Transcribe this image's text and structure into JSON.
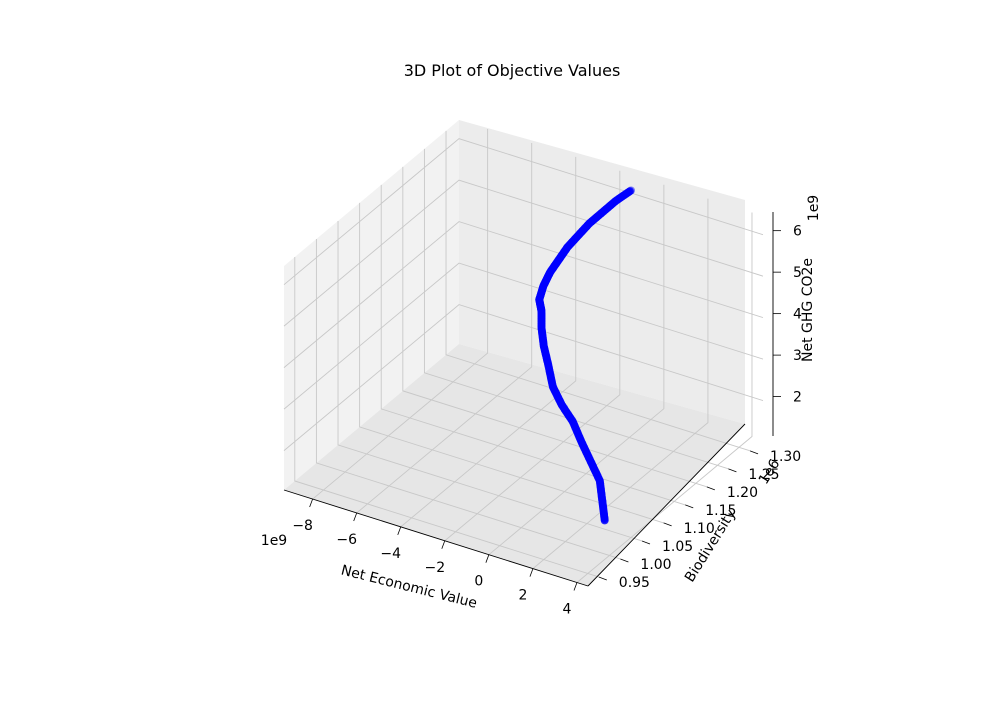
{
  "chart_data": {
    "type": "scatter",
    "title": "3D Plot of Objective Values",
    "xlabel": "Net Economic Value",
    "ylabel": "Biodiversity",
    "zlabel": "Net GHG CO2e",
    "x_offset_text": "1e9",
    "y_offset_text": "1e6",
    "z_offset_text": "1e9",
    "x_ticks": [
      "−8",
      "−6",
      "−4",
      "−2",
      "0",
      "2",
      "4"
    ],
    "y_ticks": [
      "0.95",
      "1.00",
      "1.05",
      "1.10",
      "1.15",
      "1.20",
      "1.25",
      "1.30"
    ],
    "z_ticks": [
      "2",
      "3",
      "4",
      "5",
      "6"
    ],
    "marker_color": "#0000ff",
    "grid": true,
    "series": [
      {
        "x": [
          3.2,
          2.5,
          1.8,
          1.0,
          0.2,
          -0.6,
          -1.3,
          -1.9,
          -2.5,
          -2.9,
          -3.2,
          -3.4,
          -3.5,
          -3.5,
          -3.4,
          -3.2,
          -3.0,
          -2.7,
          -2.4,
          -2.0,
          -1.6,
          -1.1
        ],
        "y": [
          1.03,
          1.06,
          1.09,
          1.11,
          1.13,
          1.15,
          1.16,
          1.17,
          1.19,
          1.2,
          1.21,
          1.22,
          1.22,
          1.23,
          1.24,
          1.25,
          1.26,
          1.27,
          1.28,
          1.29,
          1.3,
          1.31
        ],
        "z": [
          1.5,
          1.6,
          1.7,
          1.85,
          2.0,
          2.2,
          2.4,
          2.65,
          2.9,
          3.2,
          3.5,
          3.8,
          4.05,
          4.3,
          4.55,
          4.8,
          5.05,
          5.3,
          5.55,
          5.8,
          6.05,
          6.3
        ]
      }
    ]
  }
}
